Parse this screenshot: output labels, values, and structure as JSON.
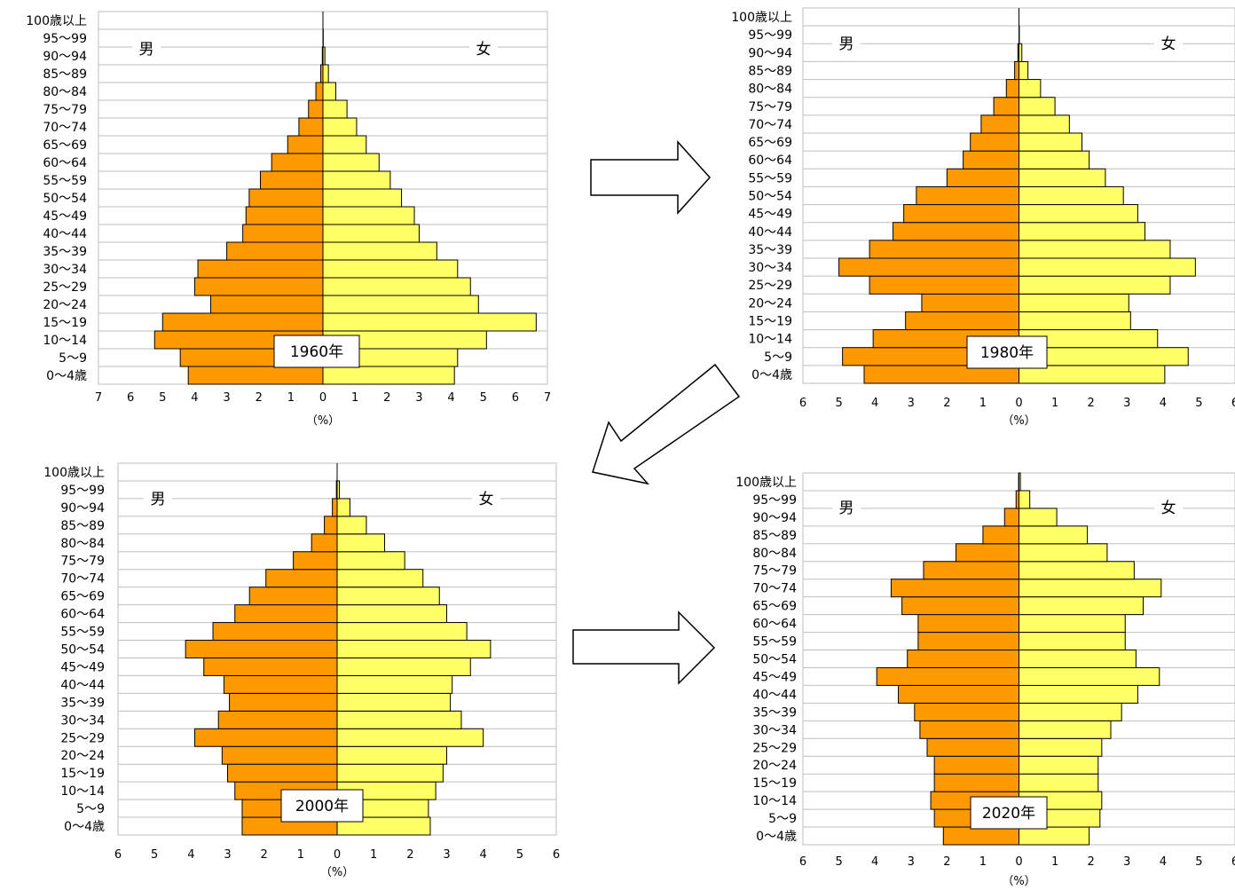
{
  "age_groups": [
    "0〜4歳",
    "5〜9",
    "10〜14",
    "15〜19",
    "20〜24",
    "25〜29",
    "30〜34",
    "35〜39",
    "40〜44",
    "45〜49",
    "50〜54",
    "55〜59",
    "60〜64",
    "65〜69",
    "70〜74",
    "75〜79",
    "80〜84",
    "85〜89",
    "90〜94",
    "95〜99",
    "100歳以上"
  ],
  "male_label": "男",
  "female_label": "女",
  "unit_label": "（%）",
  "colors": {
    "male": "#ff9900",
    "female": "#ffff66",
    "grid": "#bfbfbf",
    "arrow": "#000000"
  },
  "chart_data": [
    {
      "type": "bar",
      "year_label": "1960年",
      "xlim": [
        -7,
        7
      ],
      "x_ticks": [
        "7",
        "6",
        "5",
        "4",
        "3",
        "2",
        "1",
        "0",
        "1",
        "2",
        "3",
        "4",
        "5",
        "6",
        "7"
      ],
      "series": [
        {
          "name": "男",
          "values": [
            4.2,
            4.45,
            5.25,
            5.0,
            3.5,
            4.0,
            3.9,
            3.0,
            2.5,
            2.4,
            2.3,
            1.95,
            1.6,
            1.1,
            0.75,
            0.45,
            0.22,
            0.07,
            0.02,
            0.0,
            0.0
          ]
        },
        {
          "name": "女",
          "values": [
            4.1,
            4.2,
            5.1,
            6.65,
            4.85,
            4.6,
            4.2,
            3.55,
            3.0,
            2.85,
            2.45,
            2.1,
            1.75,
            1.35,
            1.05,
            0.75,
            0.4,
            0.17,
            0.06,
            0.01,
            0.0
          ]
        }
      ]
    },
    {
      "type": "bar",
      "year_label": "1980年",
      "xlim": [
        -6,
        6
      ],
      "x_ticks": [
        "6",
        "5",
        "4",
        "3",
        "2",
        "1",
        "0",
        "1",
        "2",
        "3",
        "4",
        "5",
        "6"
      ],
      "series": [
        {
          "name": "男",
          "values": [
            4.3,
            4.9,
            4.05,
            3.15,
            2.7,
            4.15,
            5.0,
            4.15,
            3.5,
            3.2,
            2.85,
            2.0,
            1.55,
            1.35,
            1.05,
            0.7,
            0.35,
            0.12,
            0.03,
            0.0,
            0.0
          ]
        },
        {
          "name": "女",
          "values": [
            4.05,
            4.7,
            3.85,
            3.1,
            3.05,
            4.2,
            4.9,
            4.2,
            3.5,
            3.3,
            2.9,
            2.4,
            1.95,
            1.75,
            1.4,
            1.0,
            0.6,
            0.25,
            0.08,
            0.01,
            0.0
          ]
        }
      ]
    },
    {
      "type": "bar",
      "year_label": "2000年",
      "xlim": [
        -6,
        6
      ],
      "x_ticks": [
        "6",
        "5",
        "4",
        "3",
        "2",
        "1",
        "0",
        "1",
        "2",
        "3",
        "4",
        "5",
        "6"
      ],
      "series": [
        {
          "name": "男",
          "values": [
            2.6,
            2.6,
            2.8,
            3.0,
            3.15,
            3.9,
            3.25,
            2.95,
            3.1,
            3.65,
            4.15,
            3.4,
            2.8,
            2.4,
            1.95,
            1.2,
            0.7,
            0.35,
            0.13,
            0.02,
            0.0
          ]
        },
        {
          "name": "女",
          "values": [
            2.55,
            2.5,
            2.7,
            2.9,
            3.0,
            4.0,
            3.4,
            3.1,
            3.15,
            3.65,
            4.2,
            3.55,
            3.0,
            2.8,
            2.35,
            1.85,
            1.3,
            0.8,
            0.35,
            0.06,
            0.0
          ]
        }
      ]
    },
    {
      "type": "bar",
      "year_label": "2020年",
      "xlim": [
        -6,
        6
      ],
      "x_ticks": [
        "6",
        "5",
        "4",
        "3",
        "2",
        "1",
        "0",
        "1",
        "2",
        "3",
        "4",
        "5",
        "6"
      ],
      "series": [
        {
          "name": "男",
          "values": [
            2.1,
            2.35,
            2.45,
            2.35,
            2.35,
            2.55,
            2.75,
            2.9,
            3.35,
            3.95,
            3.1,
            2.8,
            2.8,
            3.25,
            3.55,
            2.65,
            1.75,
            1.0,
            0.4,
            0.08,
            0.01
          ]
        },
        {
          "name": "女",
          "values": [
            1.95,
            2.25,
            2.3,
            2.2,
            2.2,
            2.3,
            2.55,
            2.85,
            3.3,
            3.9,
            3.25,
            2.95,
            2.95,
            3.45,
            3.95,
            3.2,
            2.45,
            1.9,
            1.05,
            0.3,
            0.04
          ]
        }
      ]
    }
  ]
}
